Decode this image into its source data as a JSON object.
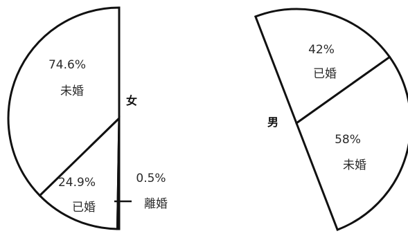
{
  "chart_data": [
    {
      "type": "pie",
      "group_label": "女",
      "slices": [
        {
          "label": "未婚",
          "value": 74.6,
          "value_label": "74.6%"
        },
        {
          "label": "已婚",
          "value": 24.9,
          "value_label": "24.9%"
        },
        {
          "label": "離婚",
          "value": 0.5,
          "value_label": "0.5%"
        }
      ]
    },
    {
      "type": "pie",
      "group_label": "男",
      "slices": [
        {
          "label": "已婚",
          "value": 42,
          "value_label": "42%"
        },
        {
          "label": "未婚",
          "value": 58,
          "value_label": "58%"
        }
      ]
    }
  ]
}
